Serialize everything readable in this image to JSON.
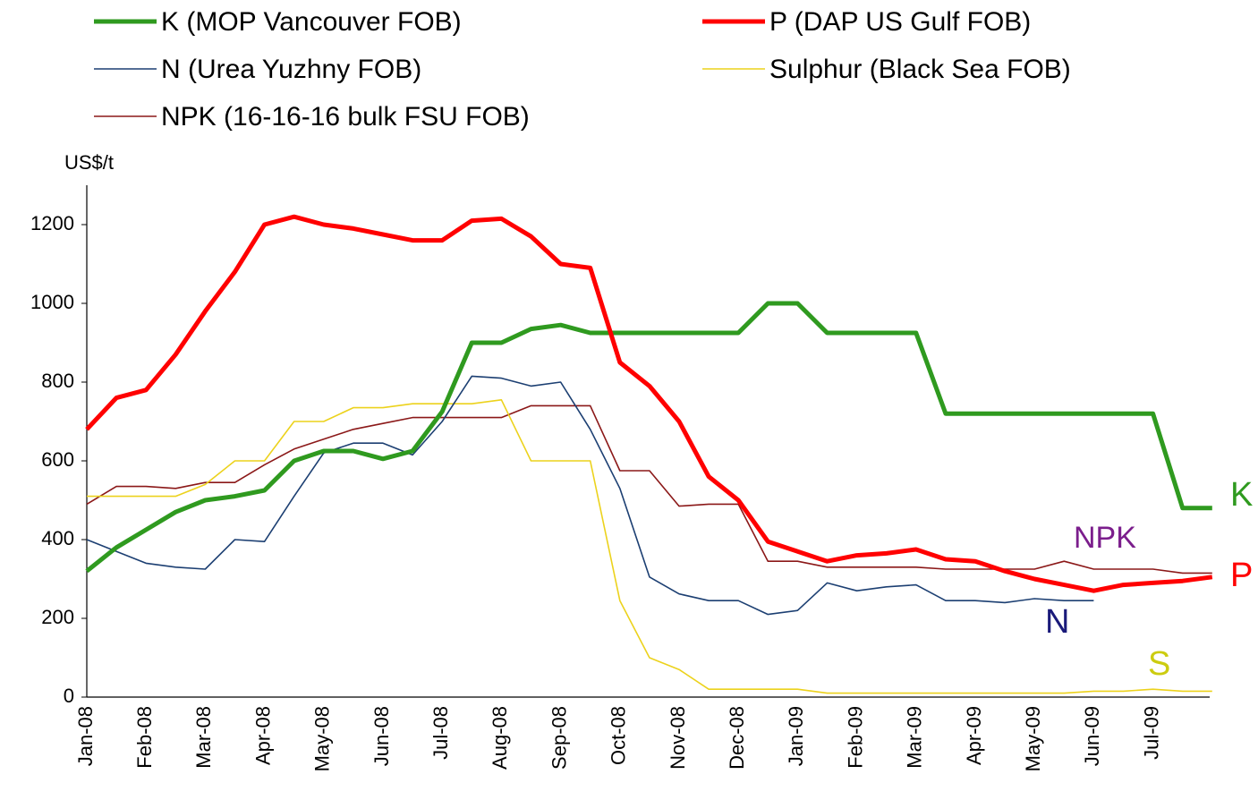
{
  "chart_data": {
    "type": "line",
    "y_label": "US$/t",
    "categories": [
      "Jan-08",
      null,
      "Feb-08",
      null,
      "Mar-08",
      null,
      "Apr-08",
      null,
      "May-08",
      null,
      "Jun-08",
      null,
      "Jul-08",
      null,
      "Aug-08",
      null,
      "Sep-08",
      null,
      "Oct-08",
      null,
      "Nov-08",
      null,
      "Dec-08",
      null,
      "Jan-09",
      null,
      "Feb-09",
      null,
      "Mar-09",
      null,
      "Apr-09",
      null,
      "May-09",
      null,
      "Jun-09",
      null,
      "Jul-09",
      null,
      null
    ],
    "ylim": [
      0,
      1300
    ],
    "yticks": [
      0,
      200,
      400,
      600,
      800,
      1000,
      1200
    ],
    "grid": false,
    "legend": "top",
    "series": [
      {
        "name": "K (MOP Vancouver FOB)",
        "color": "#2f9a1f",
        "width": 5,
        "values": [
          320,
          380,
          425,
          470,
          500,
          510,
          525,
          600,
          625,
          625,
          605,
          625,
          725,
          900,
          900,
          935,
          945,
          925,
          925,
          925,
          925,
          925,
          925,
          1000,
          1000,
          925,
          925,
          925,
          925,
          720,
          720,
          720,
          720,
          720,
          720,
          720,
          720,
          480,
          480
        ]
      },
      {
        "name": "P (DAP US Gulf FOB)",
        "color": "#ff0000",
        "width": 5,
        "values": [
          680,
          760,
          780,
          870,
          980,
          1080,
          1200,
          1220,
          1200,
          1190,
          1175,
          1160,
          1160,
          1210,
          1215,
          1170,
          1100,
          1090,
          850,
          790,
          700,
          560,
          500,
          395,
          370,
          345,
          360,
          365,
          375,
          350,
          345,
          320,
          300,
          285,
          270,
          285,
          290,
          295,
          305
        ]
      },
      {
        "name": "N (Urea Yuzhny FOB)",
        "color": "#1c3f72",
        "width": 1.6,
        "values": [
          400,
          370,
          340,
          330,
          325,
          400,
          395,
          510,
          620,
          645,
          645,
          615,
          700,
          815,
          810,
          790,
          800,
          680,
          530,
          305,
          262,
          245,
          245,
          210,
          220,
          290,
          270,
          280,
          285,
          245,
          245,
          240,
          250,
          245,
          245,
          null,
          null,
          null,
          null
        ]
      },
      {
        "name": "Sulphur (Black Sea FOB)",
        "color": "#ecd21c",
        "width": 1.6,
        "values": [
          510,
          510,
          510,
          510,
          540,
          600,
          600,
          700,
          700,
          735,
          735,
          745,
          745,
          745,
          755,
          600,
          600,
          600,
          245,
          100,
          70,
          20,
          20,
          20,
          20,
          10,
          10,
          10,
          10,
          10,
          10,
          10,
          10,
          10,
          15,
          15,
          20,
          15,
          15
        ]
      },
      {
        "name": "NPK (16-16-16 bulk FSU FOB)",
        "color": "#8b1818",
        "width": 1.6,
        "values": [
          490,
          535,
          535,
          530,
          545,
          545,
          590,
          630,
          655,
          680,
          695,
          710,
          710,
          710,
          710,
          740,
          740,
          740,
          575,
          575,
          485,
          490,
          490,
          345,
          345,
          330,
          330,
          330,
          330,
          325,
          325,
          325,
          325,
          345,
          325,
          325,
          325,
          315,
          315
        ]
      }
    ],
    "annotations": [
      {
        "text": "K",
        "color": "#2f9a1f"
      },
      {
        "text": "NPK",
        "color": "#7b1e8c"
      },
      {
        "text": "P",
        "color": "#ff0000"
      },
      {
        "text": "N",
        "color": "#1a1a7a"
      },
      {
        "text": "S",
        "color": "#cccc10"
      }
    ]
  }
}
